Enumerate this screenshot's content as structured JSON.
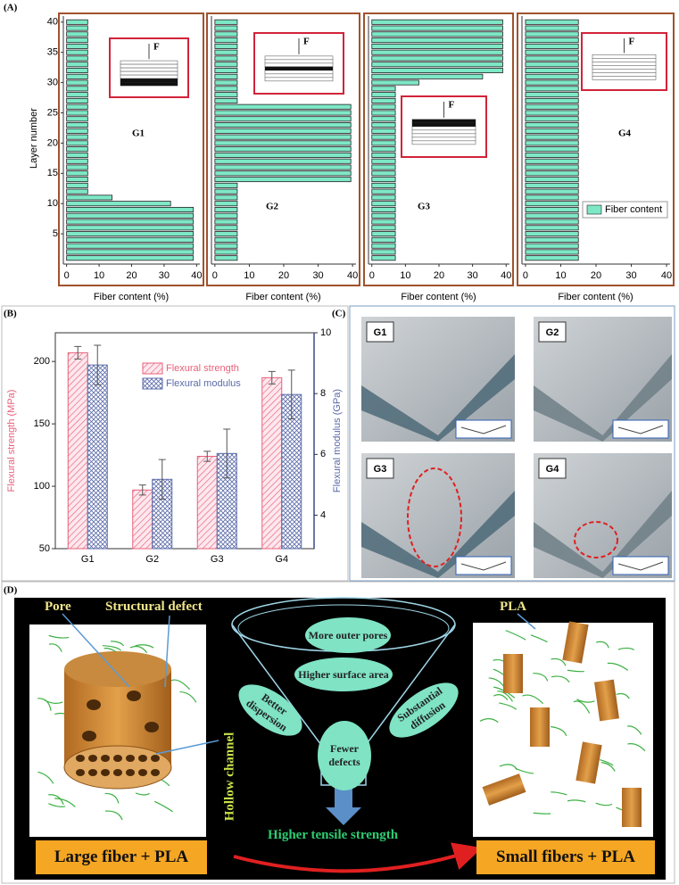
{
  "panel_labels": [
    "(A)",
    "(B)",
    "(C)",
    "(D)"
  ],
  "chart_data": [
    {
      "type": "bar",
      "orientation": "horizontal",
      "annotation": "G1",
      "inset_force": "F",
      "y": [
        1,
        2,
        3,
        4,
        5,
        6,
        7,
        8,
        9,
        10,
        11,
        12,
        13,
        14,
        15,
        16,
        17,
        18,
        19,
        20,
        21,
        22,
        23,
        24,
        25,
        26,
        27,
        28,
        29,
        30,
        31,
        32,
        33,
        34,
        35,
        36,
        37,
        38,
        39,
        40
      ],
      "values": [
        39,
        39,
        39,
        39,
        39,
        39,
        39,
        39,
        39,
        32,
        14,
        6.5,
        6.5,
        6.5,
        6.5,
        6.5,
        6.5,
        6.5,
        6.5,
        6.5,
        6.5,
        6.5,
        6.5,
        6.5,
        6.5,
        6.5,
        6.5,
        6.5,
        6.5,
        6.5,
        6.5,
        6.5,
        6.5,
        6.5,
        6.5,
        6.5,
        6.5,
        6.5,
        6.5,
        6.5
      ],
      "color": "#7ee8c6",
      "xlim": [
        -1,
        41
      ],
      "xticks": [
        0,
        10,
        20,
        30,
        40
      ],
      "ylim": [
        0,
        41
      ],
      "yticks": [
        5,
        10,
        15,
        20,
        25,
        30,
        35,
        40
      ],
      "x_label": "Fiber content (%)",
      "y_label": "Layer number"
    },
    {
      "type": "bar",
      "orientation": "horizontal",
      "annotation": "G2",
      "inset_force": "F",
      "y": [
        1,
        2,
        3,
        4,
        5,
        6,
        7,
        8,
        9,
        10,
        11,
        12,
        13,
        14,
        15,
        16,
        17,
        18,
        19,
        20,
        21,
        22,
        23,
        24,
        25,
        26,
        27,
        28,
        29,
        30,
        31,
        32,
        33,
        34,
        35,
        36,
        37,
        38,
        39,
        40
      ],
      "values": [
        6.5,
        6.5,
        6.5,
        6.5,
        6.5,
        6.5,
        6.5,
        6.5,
        6.5,
        6.5,
        6.5,
        6.5,
        6.5,
        39.5,
        39.5,
        39.5,
        39.5,
        39.5,
        39.5,
        39.5,
        39.5,
        39.5,
        39.5,
        39.5,
        39.5,
        39.5,
        6.5,
        6.5,
        6.5,
        6.5,
        6.5,
        6.5,
        6.5,
        6.5,
        6.5,
        6.5,
        6.5,
        6.5,
        6.5,
        6.5
      ],
      "color": "#7ee8c6",
      "xlim": [
        -1,
        41
      ],
      "xticks": [
        0,
        10,
        20,
        30,
        40
      ],
      "ylim": [
        0,
        41
      ],
      "x_label": "Fiber content (%)"
    },
    {
      "type": "bar",
      "orientation": "horizontal",
      "annotation": "G3",
      "inset_force": "F",
      "y": [
        1,
        2,
        3,
        4,
        5,
        6,
        7,
        8,
        9,
        10,
        11,
        12,
        13,
        14,
        15,
        16,
        17,
        18,
        19,
        20,
        21,
        22,
        23,
        24,
        25,
        26,
        27,
        28,
        29,
        30,
        31,
        32,
        33,
        34,
        35,
        36,
        37,
        38,
        39,
        40
      ],
      "values": [
        7,
        7,
        7,
        7,
        7,
        7,
        7,
        7,
        7,
        7,
        7,
        7,
        7,
        7,
        7,
        7,
        7,
        7,
        7,
        7,
        7,
        7,
        7,
        7,
        7,
        7,
        7,
        7,
        7,
        14,
        33,
        39,
        39,
        39,
        39,
        39,
        39,
        39,
        39,
        39
      ],
      "color": "#7ee8c6",
      "xlim": [
        -1,
        41
      ],
      "xticks": [
        0,
        10,
        20,
        30,
        40
      ],
      "ylim": [
        0,
        41
      ],
      "x_label": "Fiber content (%)"
    },
    {
      "type": "bar",
      "orientation": "horizontal",
      "annotation": "G4",
      "inset_force": "F",
      "y": [
        1,
        2,
        3,
        4,
        5,
        6,
        7,
        8,
        9,
        10,
        11,
        12,
        13,
        14,
        15,
        16,
        17,
        18,
        19,
        20,
        21,
        22,
        23,
        24,
        25,
        26,
        27,
        28,
        29,
        30,
        31,
        32,
        33,
        34,
        35,
        36,
        37,
        38,
        39,
        40
      ],
      "series": [
        {
          "name": "Fiber content",
          "color": "#7ee8c6",
          "values": [
            15,
            15,
            15,
            15,
            15,
            15,
            15,
            15,
            15,
            15,
            15,
            15,
            15,
            15,
            15,
            15,
            15,
            15,
            15,
            15,
            15,
            15,
            15,
            15,
            15,
            15,
            15,
            15,
            15,
            15,
            15,
            15,
            15,
            15,
            15,
            15,
            15,
            15,
            15,
            15
          ]
        }
      ],
      "legend": "right",
      "xlim": [
        -1,
        41
      ],
      "xticks": [
        0,
        10,
        20,
        30,
        40
      ],
      "ylim": [
        0,
        41
      ],
      "x_label": "Fiber content (%)"
    },
    {
      "type": "grouped_bar",
      "categories": [
        "G1",
        "G2",
        "G3",
        "G4"
      ],
      "series": [
        {
          "name": "Flexural strength",
          "color": "#e8607a",
          "values": [
            207,
            97,
            124,
            187
          ],
          "errors": [
            5,
            4,
            4,
            5
          ]
        },
        {
          "name": "Flexural modulus",
          "color": "#5a6aa8",
          "axis": "y2",
          "values": [
            8.94,
            5.18,
            6.03,
            7.97
          ],
          "errors": [
            0.65,
            0.65,
            0.8,
            0.8
          ]
        }
      ],
      "ylim": [
        50,
        223
      ],
      "yticks": [
        50,
        100,
        150,
        200
      ],
      "y2lim": [
        2.9,
        10
      ],
      "y2ticks": [
        4,
        6,
        8,
        10
      ],
      "y_label": "Flexural strength (MPa)",
      "y2_label": "Flexural modulus (GPa)"
    }
  ],
  "photos": {
    "labels": [
      "G1",
      "G2",
      "G3",
      "G4"
    ]
  },
  "diagram": {
    "left_labels": [
      "Pore",
      "Structural defect"
    ],
    "right_label": "PLA",
    "funnel": [
      "More outer pores",
      "Higher surface area",
      "Better dispersion",
      "Substantial diffusion",
      "Fewer defects"
    ],
    "side_label": "Hollow channel",
    "arrow_label": "Higher tensile strength",
    "left_caption": "Large fiber + PLA",
    "right_caption": "Small fibers + PLA"
  }
}
